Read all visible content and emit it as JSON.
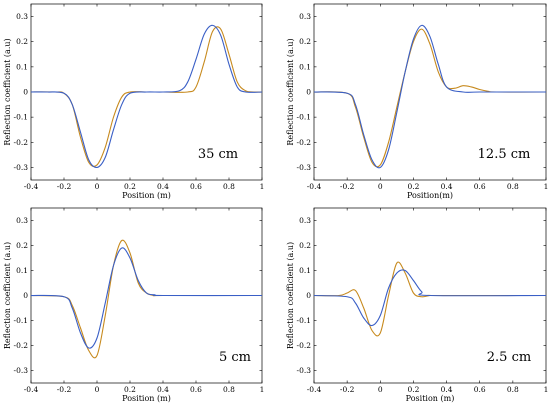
{
  "colors": {
    "blue": "#3a5fc6",
    "orange": "#c78a1e",
    "axis": "#000000"
  },
  "chart_data": [
    {
      "type": "line",
      "xlabel": "Position (m)",
      "ylabel": "Reflection coefficient (a.u)",
      "annotation": "35 cm",
      "xlim": [
        -0.4,
        1.0
      ],
      "ylim": [
        -0.35,
        0.35
      ],
      "xticks": [
        "-0.4",
        "-0.2",
        "0",
        "0.2",
        "0.4",
        "0.6",
        "0.8",
        "1"
      ],
      "yticks": [
        "-0.3",
        "-0.2",
        "-0.1",
        "0",
        "0.1",
        "0.2",
        "0.3"
      ],
      "series": [
        {
          "color": "blue",
          "x": [
            -0.4,
            -0.3,
            -0.2,
            -0.15,
            -0.1,
            -0.05,
            0,
            0.05,
            0.1,
            0.15,
            0.2,
            0.3,
            0.4,
            0.5,
            0.55,
            0.6,
            0.65,
            0.7,
            0.75,
            0.8,
            0.85,
            0.9,
            1.0
          ],
          "y": [
            0,
            0,
            -0.005,
            -0.05,
            -0.16,
            -0.27,
            -0.3,
            -0.26,
            -0.15,
            -0.05,
            -0.005,
            0,
            0,
            0.005,
            0.04,
            0.13,
            0.23,
            0.265,
            0.225,
            0.11,
            0.02,
            0,
            0
          ]
        },
        {
          "color": "orange",
          "x": [
            -0.4,
            -0.25,
            -0.2,
            -0.15,
            -0.1,
            -0.05,
            0,
            0.05,
            0.1,
            0.15,
            0.2,
            0.3,
            0.4,
            0.55,
            0.6,
            0.65,
            0.7,
            0.75,
            0.8,
            0.85,
            0.9,
            0.95,
            1.0
          ],
          "y": [
            0,
            0,
            -0.005,
            -0.05,
            -0.18,
            -0.28,
            -0.29,
            -0.22,
            -0.1,
            -0.02,
            0,
            0,
            0,
            0,
            0.02,
            0.12,
            0.24,
            0.25,
            0.15,
            0.04,
            0.005,
            0,
            0
          ]
        }
      ]
    },
    {
      "type": "line",
      "xlabel": "Position(m)",
      "ylabel": "Reflection coefficient (a.u)",
      "annotation": "12.5 cm",
      "xlim": [
        -0.4,
        1.0
      ],
      "ylim": [
        -0.35,
        0.35
      ],
      "xticks": [
        "-0.4",
        "-0.2",
        "0",
        "0.2",
        "0.4",
        "0.6",
        "0.8",
        "1"
      ],
      "yticks": [
        "-0.3",
        "-0.2",
        "-0.1",
        "0",
        "0.1",
        "0.2",
        "0.3"
      ],
      "series": [
        {
          "color": "blue",
          "x": [
            -0.4,
            -0.2,
            -0.15,
            -0.1,
            -0.05,
            0,
            0.05,
            0.1,
            0.15,
            0.2,
            0.25,
            0.3,
            0.35,
            0.4,
            0.5,
            0.6,
            1.0
          ],
          "y": [
            0,
            -0.005,
            -0.05,
            -0.17,
            -0.27,
            -0.3,
            -0.23,
            -0.08,
            0.08,
            0.21,
            0.265,
            0.22,
            0.11,
            0.02,
            0,
            0,
            0
          ]
        },
        {
          "color": "orange",
          "x": [
            -0.4,
            -0.2,
            -0.15,
            -0.1,
            -0.05,
            0,
            0.05,
            0.1,
            0.15,
            0.2,
            0.25,
            0.3,
            0.35,
            0.4,
            0.45,
            0.5,
            0.55,
            0.6,
            0.65,
            0.7,
            1.0
          ],
          "y": [
            0,
            -0.005,
            -0.06,
            -0.18,
            -0.28,
            -0.29,
            -0.2,
            -0.06,
            0.08,
            0.2,
            0.25,
            0.19,
            0.08,
            0.02,
            0.015,
            0.025,
            0.02,
            0.01,
            0.003,
            0,
            0
          ]
        }
      ]
    },
    {
      "type": "line",
      "xlabel": "Position (m)",
      "ylabel": "Reflection coefficient (a.u)",
      "annotation": "5 cm",
      "xlim": [
        -0.4,
        1.0
      ],
      "ylim": [
        -0.35,
        0.35
      ],
      "xticks": [
        "-0.4",
        "-0.2",
        "0",
        "0.2",
        "0.4",
        "0.6",
        "0.8",
        "1"
      ],
      "yticks": [
        "-0.3",
        "-0.2",
        "-0.1",
        "0",
        "0.1",
        "0.2",
        "0.3"
      ],
      "series": [
        {
          "color": "blue",
          "x": [
            -0.4,
            -0.2,
            -0.15,
            -0.1,
            -0.05,
            0,
            0.05,
            0.1,
            0.15,
            0.2,
            0.25,
            0.3,
            0.35,
            0.4,
            1.0
          ],
          "y": [
            0,
            -0.005,
            -0.05,
            -0.15,
            -0.21,
            -0.17,
            -0.03,
            0.12,
            0.19,
            0.15,
            0.06,
            0.01,
            0.003,
            0,
            0
          ]
        },
        {
          "color": "orange",
          "x": [
            -0.4,
            -0.2,
            -0.15,
            -0.1,
            -0.05,
            0,
            0.05,
            0.1,
            0.15,
            0.2,
            0.25,
            0.3,
            0.35,
            0.4,
            1.0
          ],
          "y": [
            0,
            -0.005,
            -0.04,
            -0.13,
            -0.22,
            -0.24,
            -0.08,
            0.12,
            0.22,
            0.17,
            0.05,
            0.01,
            0,
            0,
            0
          ]
        }
      ]
    },
    {
      "type": "line",
      "xlabel": "Position (m)",
      "ylabel": "Reflection coefficient (a.u)",
      "annotation": "2.5 cm",
      "xlim": [
        -0.4,
        1.0
      ],
      "ylim": [
        -0.35,
        0.35
      ],
      "xticks": [
        "-0.4",
        "-0.2",
        "0",
        "0.2",
        "0.4",
        "0.6",
        "0.8",
        "1"
      ],
      "yticks": [
        "-0.3",
        "-0.2",
        "-0.1",
        "0",
        "0.1",
        "0.2",
        "0.3"
      ],
      "series": [
        {
          "color": "blue",
          "x": [
            -0.4,
            -0.2,
            -0.15,
            -0.1,
            -0.05,
            0,
            0.05,
            0.1,
            0.15,
            0.2,
            0.25,
            0.3,
            1.0
          ],
          "y": [
            0,
            -0.005,
            -0.03,
            -0.09,
            -0.12,
            -0.08,
            0.03,
            0.09,
            0.1,
            0.06,
            0.015,
            0,
            0
          ]
        },
        {
          "color": "orange",
          "x": [
            -0.4,
            -0.25,
            -0.2,
            -0.15,
            -0.1,
            -0.05,
            0,
            0.05,
            0.1,
            0.15,
            0.2,
            0.25,
            0.3,
            0.35,
            1.0
          ],
          "y": [
            0,
            0,
            0.01,
            0.02,
            -0.05,
            -0.14,
            -0.15,
            0.0,
            0.13,
            0.09,
            0.01,
            -0.005,
            0,
            0,
            0
          ]
        }
      ]
    }
  ]
}
